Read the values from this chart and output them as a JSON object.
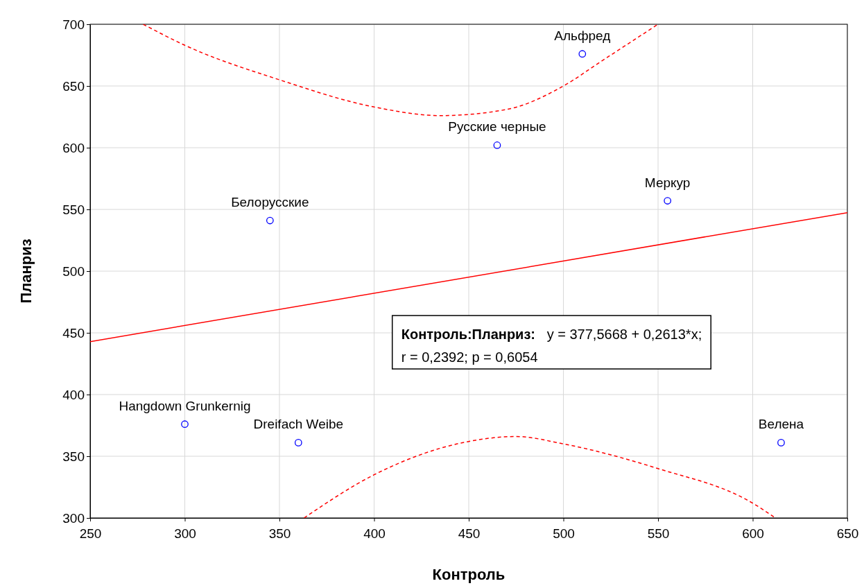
{
  "chart_data": {
    "type": "scatter",
    "xlabel": "Контроль",
    "ylabel": "Планриз",
    "xlim": [
      250,
      650
    ],
    "ylim": [
      300,
      700
    ],
    "xticks": [
      250,
      300,
      350,
      400,
      450,
      500,
      550,
      600,
      650
    ],
    "yticks": [
      300,
      350,
      400,
      450,
      500,
      550,
      600,
      650,
      700
    ],
    "grid": true,
    "series": [
      {
        "marker": "circle",
        "color": "#0000ff",
        "x": [
          510,
          465,
          555,
          345,
          300,
          360,
          615
        ],
        "values": [
          676,
          602,
          557,
          541,
          376,
          361,
          361
        ],
        "value_labels": [
          "Альфред",
          "Русские черные",
          "Меркур",
          "Белорусские",
          "Hangdown Grunkernig",
          "Dreifach Weibe",
          "Велена"
        ]
      },
      {
        "type": "line",
        "color": "#ff0000",
        "line_style": "solid",
        "x": [
          250,
          650
        ],
        "values": [
          442.9,
          547.4
        ]
      },
      {
        "type": "line",
        "color": "#ff0000",
        "line_style": "dashed",
        "x": [
          278,
          300,
          350,
          400,
          435,
          470,
          500,
          520,
          550
        ],
        "values": [
          700,
          683,
          655,
          633,
          626,
          631,
          650,
          670,
          700
        ]
      },
      {
        "type": "line",
        "color": "#ff0000",
        "line_style": "dashed",
        "x": [
          363,
          400,
          450,
          475,
          500,
          550,
          600,
          612
        ],
        "values": [
          300,
          335,
          362,
          366,
          360,
          340,
          312,
          300
        ]
      }
    ],
    "annotations": [
      "Контроль:Планриз:   y = 377,5668 + 0,2613*x;",
      "r = 0,2392; p = 0,6054"
    ]
  }
}
